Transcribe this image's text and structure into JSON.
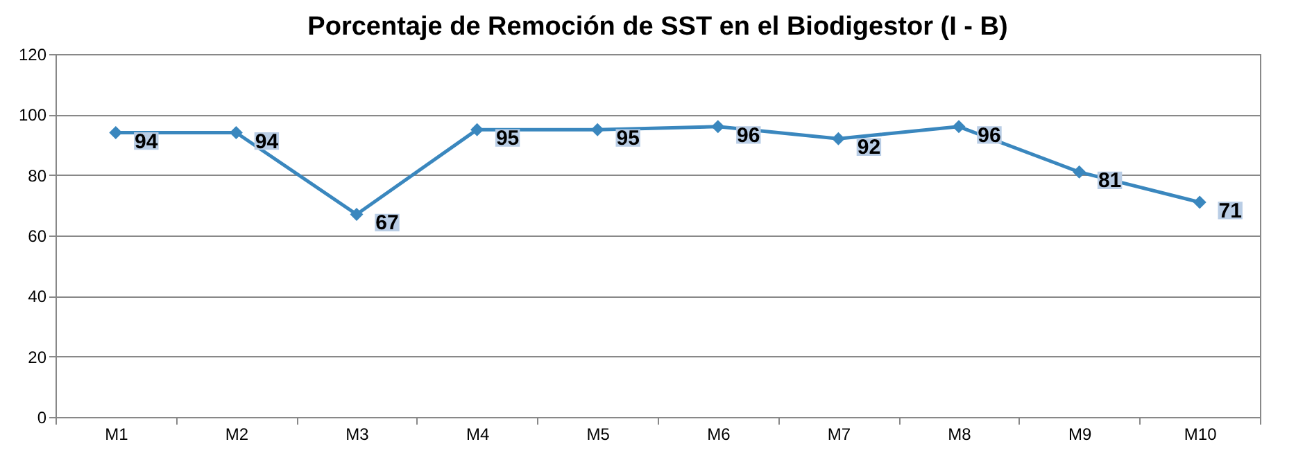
{
  "chart_data": {
    "type": "line",
    "title": "Porcentaje de Remoción de SST en el Biodigestor (I - B)",
    "categories": [
      "M1",
      "M2",
      "M3",
      "M4",
      "M5",
      "M6",
      "M7",
      "M8",
      "M9",
      "M10"
    ],
    "series": [
      {
        "color": "#3a87be",
        "values": [
          94,
          94,
          67,
          95,
          95,
          96,
          92,
          96,
          81,
          71
        ]
      }
    ],
    "ylim": [
      0,
      120
    ],
    "yticks": [
      0,
      20,
      40,
      60,
      80,
      100,
      120
    ],
    "grid": "y",
    "marker": "diamond",
    "line_style": "solid",
    "data_labels": true
  }
}
